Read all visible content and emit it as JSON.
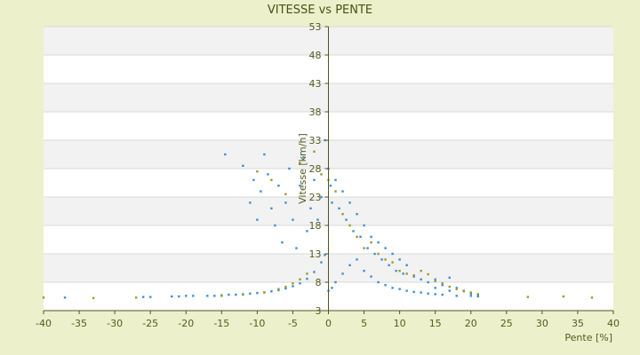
{
  "chart_data": {
    "type": "scatter",
    "title": "VITESSE vs PENTE",
    "xlabel": "Pente [%]",
    "ylabel": "Vitesse [km/h]",
    "xlim": [
      -40,
      40
    ],
    "ylim": [
      3,
      53
    ],
    "xticks": [
      -40,
      -35,
      -30,
      -25,
      -20,
      -15,
      -10,
      -5,
      0,
      5,
      10,
      15,
      20,
      25,
      30,
      35,
      40
    ],
    "yticks": [
      3,
      8,
      13,
      18,
      23,
      28,
      33,
      38,
      43,
      48,
      53
    ],
    "grid": "horizontal bands",
    "legend": "none",
    "colors": {
      "background": "#ecf1cc",
      "plot_band_light": "#ffffff",
      "plot_band_dark": "#f2f2f2",
      "series_primary": "#3a8fd8",
      "series_secondary": "#9a9a2a",
      "axis": "#4f5520"
    },
    "series": [
      {
        "values_note": "",
        "points": [
          [
            -37,
            5.3
          ],
          [
            -26,
            5.4
          ],
          [
            -25,
            5.4
          ],
          [
            -22,
            5.5
          ],
          [
            -21,
            5.5
          ],
          [
            -20,
            5.6
          ],
          [
            -19,
            5.6
          ],
          [
            -17,
            5.6
          ],
          [
            -16,
            5.6
          ],
          [
            -15,
            5.7
          ],
          [
            -14,
            5.8
          ],
          [
            -13,
            5.8
          ],
          [
            -12,
            5.9
          ],
          [
            -11,
            6.0
          ],
          [
            -10,
            6.1
          ],
          [
            -9,
            6.2
          ],
          [
            -8,
            6.4
          ],
          [
            -7,
            6.6
          ],
          [
            -6,
            6.9
          ],
          [
            -5,
            7.3
          ],
          [
            -4,
            7.8
          ],
          [
            -3,
            8.6
          ],
          [
            -2,
            9.8
          ],
          [
            -1,
            11.5
          ],
          [
            -0.5,
            12.8
          ],
          [
            -14.5,
            30.5
          ],
          [
            -12,
            28.5
          ],
          [
            -11,
            22
          ],
          [
            -10.5,
            26
          ],
          [
            -10,
            19
          ],
          [
            -9.5,
            24
          ],
          [
            -9,
            30.5
          ],
          [
            -8.5,
            27
          ],
          [
            -8,
            21
          ],
          [
            -7.5,
            18
          ],
          [
            -7,
            25
          ],
          [
            -6.5,
            15
          ],
          [
            -6,
            22
          ],
          [
            -5.5,
            28
          ],
          [
            -5,
            19
          ],
          [
            -4.5,
            14
          ],
          [
            -4,
            25
          ],
          [
            -3.5,
            30
          ],
          [
            -3,
            17
          ],
          [
            -2.5,
            21
          ],
          [
            -2,
            26
          ],
          [
            -1.5,
            19
          ],
          [
            -1,
            23
          ],
          [
            -0.5,
            33
          ],
          [
            0,
            28
          ],
          [
            0.3,
            25
          ],
          [
            0.5,
            22
          ],
          [
            1,
            26
          ],
          [
            1.5,
            21
          ],
          [
            2,
            24
          ],
          [
            2.5,
            19
          ],
          [
            3,
            22
          ],
          [
            3.5,
            17
          ],
          [
            4,
            20
          ],
          [
            4.5,
            16
          ],
          [
            5,
            18
          ],
          [
            5.5,
            14
          ],
          [
            6,
            16
          ],
          [
            6.5,
            13
          ],
          [
            7,
            15
          ],
          [
            7.5,
            12
          ],
          [
            8,
            14
          ],
          [
            8.5,
            11
          ],
          [
            9,
            13
          ],
          [
            9.5,
            10
          ],
          [
            10,
            12
          ],
          [
            10.5,
            9.5
          ],
          [
            11,
            11
          ],
          [
            12,
            9
          ],
          [
            13,
            8.5
          ],
          [
            14,
            8
          ],
          [
            15,
            8.5
          ],
          [
            16,
            7.5
          ],
          [
            17,
            8.8
          ],
          [
            18,
            7
          ],
          [
            19,
            6.5
          ],
          [
            20,
            6
          ],
          [
            21,
            5.8
          ],
          [
            17,
            6.5
          ],
          [
            15,
            7
          ],
          [
            0,
            6.5
          ],
          [
            0.5,
            7
          ],
          [
            1,
            8
          ],
          [
            2,
            9.5
          ],
          [
            3,
            11
          ],
          [
            4,
            12
          ],
          [
            5,
            10
          ],
          [
            6,
            9
          ],
          [
            7,
            8
          ],
          [
            8,
            7.5
          ],
          [
            9,
            7
          ],
          [
            10,
            6.8
          ],
          [
            11,
            6.5
          ],
          [
            12,
            6.3
          ],
          [
            13,
            6.2
          ],
          [
            14,
            6
          ],
          [
            15,
            5.9
          ],
          [
            16,
            5.8
          ],
          [
            18,
            5.6
          ],
          [
            20,
            5.6
          ],
          [
            21,
            5.5
          ]
        ]
      },
      {
        "values_note": "",
        "points": [
          [
            -40,
            5.3
          ],
          [
            -33,
            5.2
          ],
          [
            -27,
            5.3
          ],
          [
            -15,
            5.6
          ],
          [
            -12,
            5.8
          ],
          [
            -9,
            6.2
          ],
          [
            -7,
            6.8
          ],
          [
            -6,
            7.2
          ],
          [
            -5,
            7.8
          ],
          [
            -4,
            8.5
          ],
          [
            -3,
            9.5
          ],
          [
            -10,
            27.5
          ],
          [
            -8,
            26
          ],
          [
            -6,
            23.5
          ],
          [
            -4,
            29
          ],
          [
            -2,
            31
          ],
          [
            -1,
            27
          ],
          [
            0,
            26
          ],
          [
            1,
            24
          ],
          [
            2,
            20
          ],
          [
            3,
            18
          ],
          [
            4,
            16
          ],
          [
            5,
            14
          ],
          [
            6,
            15
          ],
          [
            7,
            13
          ],
          [
            8,
            12
          ],
          [
            9,
            11.5
          ],
          [
            10,
            10
          ],
          [
            11,
            9.5
          ],
          [
            12,
            9.2
          ],
          [
            13,
            10
          ],
          [
            14,
            9.4
          ],
          [
            15,
            8.2
          ],
          [
            16,
            7.8
          ],
          [
            17,
            7.2
          ],
          [
            18,
            6.8
          ],
          [
            19,
            6.4
          ],
          [
            20,
            6.2
          ],
          [
            21,
            5.9
          ],
          [
            28,
            5.4
          ],
          [
            33,
            5.5
          ],
          [
            37,
            5.3
          ]
        ]
      }
    ]
  }
}
